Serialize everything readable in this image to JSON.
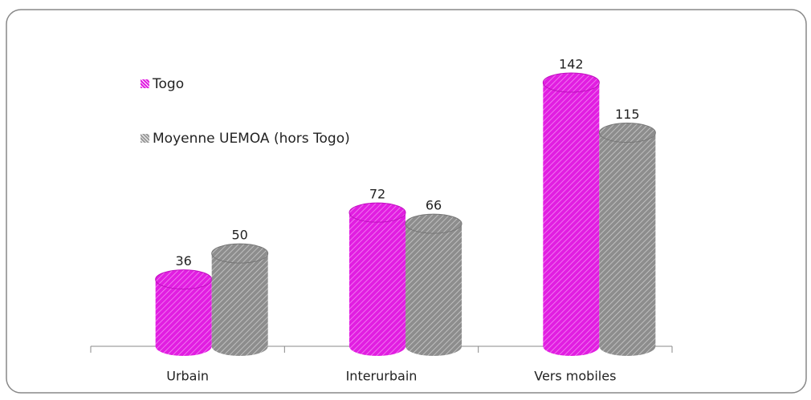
{
  "chart_data": {
    "type": "bar",
    "categories": [
      "Urbain",
      "Interurbain",
      "Vers mobiles"
    ],
    "series": [
      {
        "name": "Togo",
        "color": "#e11ee1",
        "values": [
          36,
          72,
          142
        ]
      },
      {
        "name": "Moyenne UEMOA (hors Togo)",
        "color": "#9a9a9a",
        "values": [
          50,
          66,
          115
        ]
      }
    ]
  }
}
